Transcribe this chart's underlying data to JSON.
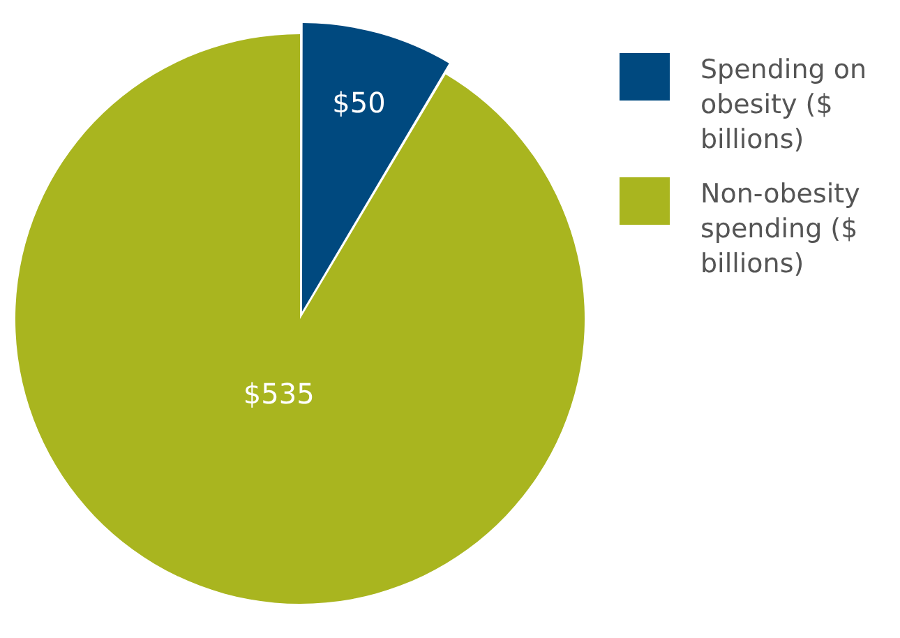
{
  "chart_data": {
    "type": "pie",
    "categories": [
      "Spending on obesity ($ billions)",
      "Non-obesity spending ($ billions)"
    ],
    "values": [
      50,
      535
    ],
    "colors": [
      "#00497f",
      "#a9b51f"
    ],
    "value_labels": [
      "$50",
      "$535"
    ],
    "legend": "right"
  }
}
